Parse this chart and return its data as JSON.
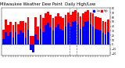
{
  "title": "Milwaukee Weather Dew Point  Daily High/Low",
  "title_fontsize": 3.8,
  "background_color": "#ffffff",
  "bar_width": 0.85,
  "ylim": [
    -25,
    80
  ],
  "yticks": [
    -20,
    -10,
    0,
    10,
    20,
    30,
    40,
    50,
    60,
    70,
    80
  ],
  "high_color": "#ff0000",
  "low_color": "#0000ff",
  "high_values": [
    32,
    55,
    42,
    50,
    42,
    50,
    45,
    52,
    52,
    48,
    60,
    18,
    18,
    60,
    40,
    65,
    58,
    68,
    72,
    65,
    58,
    62,
    68,
    62,
    58,
    65,
    70,
    65,
    72,
    75,
    70,
    62,
    68,
    72,
    75,
    70,
    68,
    62,
    60,
    58,
    52,
    50,
    55
  ],
  "low_values": [
    12,
    28,
    18,
    28,
    15,
    28,
    22,
    30,
    25,
    15,
    32,
    -12,
    -18,
    22,
    10,
    35,
    28,
    42,
    48,
    38,
    30,
    38,
    45,
    35,
    30,
    40,
    48,
    40,
    50,
    52,
    45,
    35,
    40,
    50,
    52,
    45,
    40,
    35,
    32,
    30,
    25,
    22,
    28
  ],
  "n_bars": 43,
  "vline_positions": [
    26.5,
    29.5
  ],
  "high_label": "High",
  "low_label": "Low"
}
